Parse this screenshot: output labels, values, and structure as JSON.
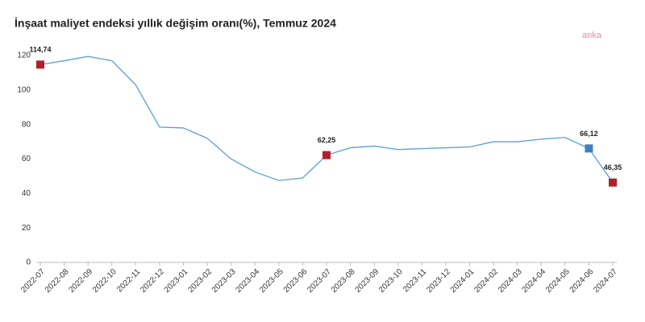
{
  "chart_data": {
    "type": "line",
    "title": "İnşaat maliyet endeksi yıllık değişim oranı(%), Temmuz 2024",
    "watermark": "anka",
    "categories": [
      "2022-07",
      "2022-08",
      "2022-09",
      "2022-10",
      "2022-11",
      "2022-12",
      "2023-01",
      "2023-02",
      "2023-03",
      "2023-04",
      "2023-05",
      "2023-06",
      "2023-07",
      "2023-08",
      "2023-09",
      "2023-10",
      "2023-11",
      "2023-12",
      "2024-01",
      "2024-02",
      "2024-03",
      "2024-04",
      "2024-05",
      "2024-06",
      "2024-07"
    ],
    "series": [
      {
        "name": "İnşaat maliyet endeksi",
        "color": "#5a9fd4",
        "values": [
          114.74,
          117,
          119.5,
          117,
          103,
          78.5,
          78,
          72,
          60,
          52.5,
          47.5,
          49,
          62.25,
          66.5,
          67.5,
          65.5,
          66,
          66.5,
          67,
          70,
          70,
          71.5,
          72.5,
          66.12,
          46.35
        ],
        "value_labels": [
          "114,74",
          null,
          null,
          null,
          null,
          null,
          null,
          null,
          null,
          null,
          null,
          null,
          "62,25",
          null,
          null,
          null,
          null,
          null,
          null,
          null,
          null,
          null,
          null,
          "66,12",
          "46,35"
        ],
        "marker_colors": [
          "#b0202a",
          null,
          null,
          null,
          null,
          null,
          null,
          null,
          null,
          null,
          null,
          null,
          "#b0202a",
          null,
          null,
          null,
          null,
          null,
          null,
          null,
          null,
          null,
          null,
          "#3f7fc0",
          "#b0202a"
        ]
      }
    ],
    "ylim": [
      0,
      120
    ],
    "yticks": [
      0,
      20,
      40,
      60,
      80,
      100,
      120
    ],
    "grid": false
  }
}
